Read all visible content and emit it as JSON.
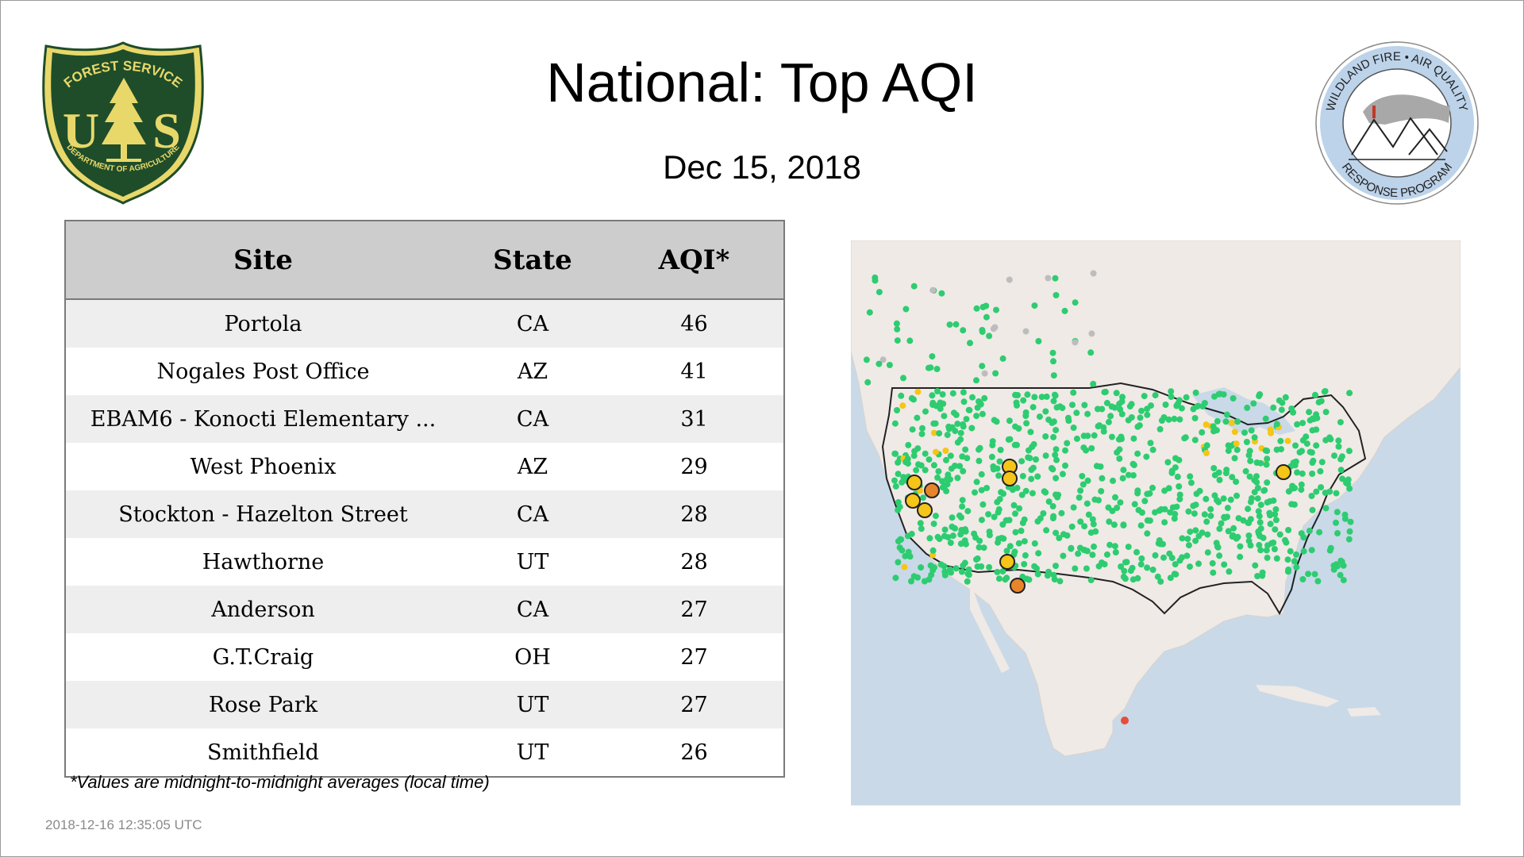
{
  "title": "National: Top AQI",
  "date": "Dec 15, 2018",
  "table": {
    "headers": [
      "Site",
      "State",
      "AQI*"
    ],
    "rows": [
      {
        "site": "Portola",
        "state": "CA",
        "aqi": "46"
      },
      {
        "site": "Nogales Post Office",
        "state": "AZ",
        "aqi": "41"
      },
      {
        "site": "EBAM6 - Konocti Elementary ...",
        "state": "CA",
        "aqi": "31"
      },
      {
        "site": "West Phoenix",
        "state": "AZ",
        "aqi": "29"
      },
      {
        "site": "Stockton - Hazelton Street",
        "state": "CA",
        "aqi": "28"
      },
      {
        "site": "Hawthorne",
        "state": "UT",
        "aqi": "28"
      },
      {
        "site": "Anderson",
        "state": "CA",
        "aqi": "27"
      },
      {
        "site": "G.T.Craig",
        "state": "OH",
        "aqi": "27"
      },
      {
        "site": "Rose Park",
        "state": "UT",
        "aqi": "27"
      },
      {
        "site": "Smithfield",
        "state": "UT",
        "aqi": "26"
      }
    ]
  },
  "footnote": "*Values are midnight-to-midnight averages (local time)",
  "timestamp": "2018-12-16 12:35:05 UTC",
  "logos": {
    "left": {
      "top_text": "FOREST SERVICE",
      "initials_left": "U",
      "initials_right": "S",
      "bottom_text": "DEPARTMENT OF AGRICULTURE"
    },
    "right": {
      "top_text": "WILDLAND FIRE • AIR QUALITY",
      "bottom_text": "RESPONSE PROGRAM"
    }
  },
  "map": {
    "colors": {
      "ocean": "#c9d9e8",
      "land": "#efeae6",
      "good": "#2ecc71",
      "moderate": "#f5c518",
      "usg": "#e8842a",
      "unhealthy": "#e74c3c",
      "nodata": "#bdbdbd"
    }
  },
  "colors": {
    "header_bg": "#cdcdcd",
    "row_alt": "#eeeeee",
    "border": "#7a7a7a",
    "forest_green": "#1f4d2a",
    "forest_gold": "#e8d86a"
  }
}
